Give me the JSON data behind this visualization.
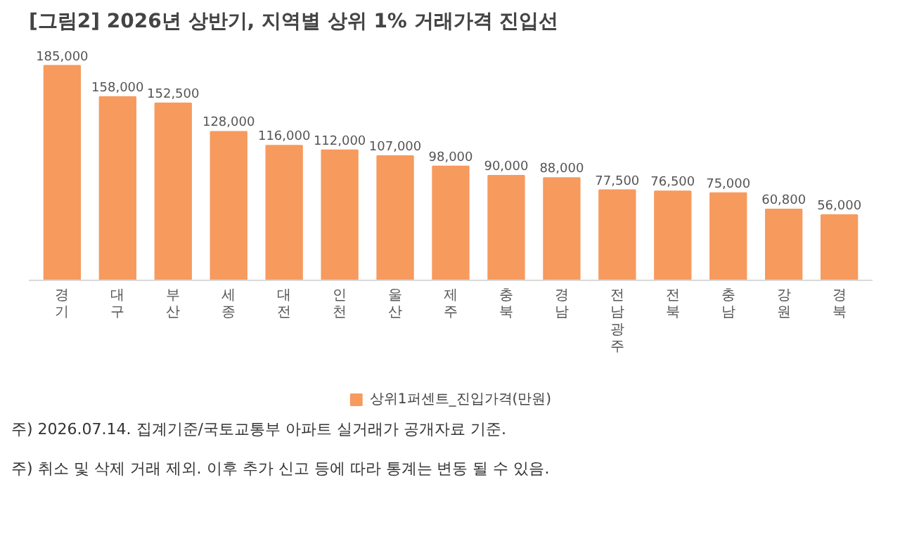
{
  "chart_data": {
    "type": "bar",
    "title": "[그림2] 2026년 상반기,  지역별 상위 1% 거래가격 진입선",
    "categories": [
      "경기",
      "대구",
      "부산",
      "세종",
      "대전",
      "인천",
      "울산",
      "제주",
      "충북",
      "경남",
      "전남광주",
      "전북",
      "충남",
      "강원",
      "경북"
    ],
    "series": [
      {
        "name": "상위1퍼센트_진입가격(만원)",
        "color": "#f79a5e",
        "values": [
          185000,
          158000,
          152500,
          128000,
          116000,
          112000,
          107000,
          98000,
          90000,
          88000,
          77500,
          76500,
          75000,
          60800,
          56000
        ],
        "value_labels": [
          "185,000",
          "158,000",
          "152,500",
          "128,000",
          "116,000",
          "112,000",
          "107,000",
          "98,000",
          "90,000",
          "88,000",
          "77,500",
          "76,500",
          "75,000",
          "60,800",
          "56,000"
        ]
      }
    ],
    "grid": false,
    "legend": "bottom",
    "annotations": [
      "주) 2026.07.14. 집계기준/국토교통부 아파트 실거래가 공개자료 기준.",
      "주) 취소 및 삭제 거래 제외. 이후 추가 신고 등에 따라 통계는 변동 될 수 있음."
    ]
  }
}
